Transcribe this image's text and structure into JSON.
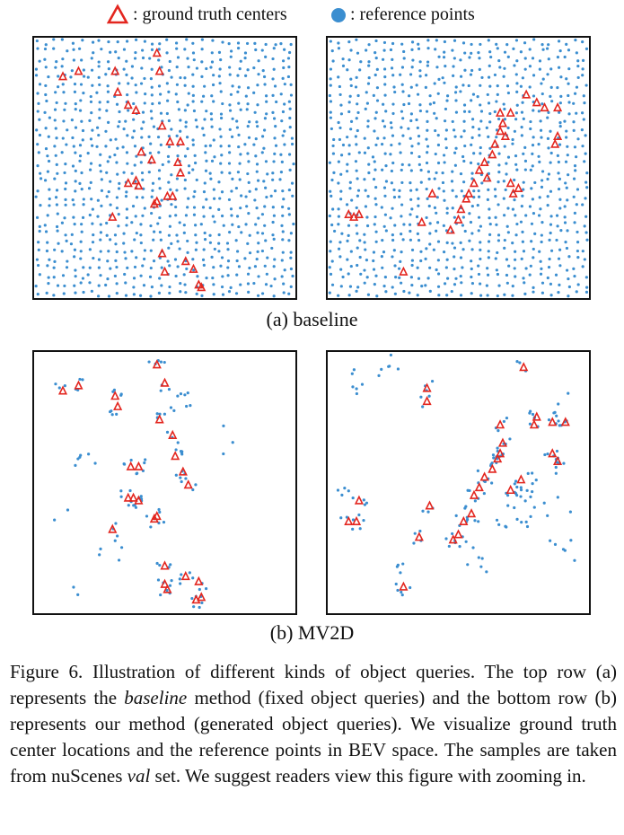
{
  "legend": {
    "ground_truth_label": ": ground truth centers",
    "reference_label": ": reference points",
    "ground_truth_color": "#e3261f",
    "reference_color": "#3b8ed0"
  },
  "subcaptions": {
    "a": "(a) baseline",
    "b": "(b) MV2D"
  },
  "caption": {
    "label": "Figure 6.",
    "text_1": "Illustration of different kinds of object queries. The top row (a) represents the",
    "italic_1": "baseline",
    "text_2": "method (fixed object queries) and the bottom row (b) represents our method (generated object queries). We visualize ground truth center locations and the reference points in BEV space. The samples are taken from nuScenes",
    "italic_2": "val",
    "text_3": "set. We suggest readers view this figure with zooming in."
  },
  "panels": {
    "baseline_left": {
      "ground_truth": [
        [
          0.11,
          0.15
        ],
        [
          0.17,
          0.13
        ],
        [
          0.31,
          0.13
        ],
        [
          0.32,
          0.21
        ],
        [
          0.47,
          0.06
        ],
        [
          0.48,
          0.13
        ],
        [
          0.36,
          0.26
        ],
        [
          0.39,
          0.28
        ],
        [
          0.49,
          0.34
        ],
        [
          0.52,
          0.4
        ],
        [
          0.56,
          0.4
        ],
        [
          0.41,
          0.44
        ],
        [
          0.45,
          0.47
        ],
        [
          0.55,
          0.48
        ],
        [
          0.56,
          0.52
        ],
        [
          0.39,
          0.55
        ],
        [
          0.36,
          0.56
        ],
        [
          0.4,
          0.57
        ],
        [
          0.51,
          0.61
        ],
        [
          0.53,
          0.61
        ],
        [
          0.47,
          0.63
        ],
        [
          0.46,
          0.64
        ],
        [
          0.3,
          0.69
        ],
        [
          0.49,
          0.83
        ],
        [
          0.58,
          0.86
        ],
        [
          0.5,
          0.9
        ],
        [
          0.61,
          0.89
        ],
        [
          0.63,
          0.95
        ],
        [
          0.64,
          0.96
        ]
      ]
    },
    "baseline_right": {
      "ground_truth": [
        [
          0.76,
          0.22
        ],
        [
          0.8,
          0.25
        ],
        [
          0.83,
          0.27
        ],
        [
          0.88,
          0.27
        ],
        [
          0.66,
          0.29
        ],
        [
          0.7,
          0.29
        ],
        [
          0.67,
          0.33
        ],
        [
          0.66,
          0.36
        ],
        [
          0.68,
          0.38
        ],
        [
          0.88,
          0.38
        ],
        [
          0.87,
          0.41
        ],
        [
          0.64,
          0.41
        ],
        [
          0.63,
          0.45
        ],
        [
          0.6,
          0.48
        ],
        [
          0.58,
          0.51
        ],
        [
          0.61,
          0.54
        ],
        [
          0.56,
          0.56
        ],
        [
          0.7,
          0.56
        ],
        [
          0.4,
          0.6
        ],
        [
          0.54,
          0.6
        ],
        [
          0.53,
          0.62
        ],
        [
          0.73,
          0.58
        ],
        [
          0.71,
          0.6
        ],
        [
          0.51,
          0.66
        ],
        [
          0.12,
          0.68
        ],
        [
          0.08,
          0.68
        ],
        [
          0.1,
          0.69
        ],
        [
          0.5,
          0.7
        ],
        [
          0.47,
          0.74
        ],
        [
          0.36,
          0.71
        ],
        [
          0.29,
          0.9
        ]
      ]
    },
    "mv2d_left": {
      "ground_truth": [
        [
          0.11,
          0.15
        ],
        [
          0.17,
          0.13
        ],
        [
          0.31,
          0.17
        ],
        [
          0.32,
          0.21
        ],
        [
          0.47,
          0.05
        ],
        [
          0.5,
          0.12
        ],
        [
          0.48,
          0.26
        ],
        [
          0.53,
          0.32
        ],
        [
          0.54,
          0.4
        ],
        [
          0.57,
          0.46
        ],
        [
          0.37,
          0.44
        ],
        [
          0.4,
          0.44
        ],
        [
          0.38,
          0.56
        ],
        [
          0.4,
          0.57
        ],
        [
          0.59,
          0.51
        ],
        [
          0.36,
          0.56
        ],
        [
          0.47,
          0.63
        ],
        [
          0.46,
          0.64
        ],
        [
          0.3,
          0.68
        ],
        [
          0.5,
          0.82
        ],
        [
          0.58,
          0.86
        ],
        [
          0.5,
          0.89
        ],
        [
          0.51,
          0.91
        ],
        [
          0.63,
          0.88
        ],
        [
          0.62,
          0.95
        ],
        [
          0.64,
          0.94
        ]
      ]
    },
    "mv2d_right": {
      "ground_truth": [
        [
          0.75,
          0.06
        ],
        [
          0.38,
          0.14
        ],
        [
          0.38,
          0.19
        ],
        [
          0.66,
          0.28
        ],
        [
          0.79,
          0.28
        ],
        [
          0.8,
          0.25
        ],
        [
          0.86,
          0.27
        ],
        [
          0.91,
          0.27
        ],
        [
          0.67,
          0.35
        ],
        [
          0.66,
          0.39
        ],
        [
          0.65,
          0.41
        ],
        [
          0.63,
          0.45
        ],
        [
          0.6,
          0.48
        ],
        [
          0.58,
          0.52
        ],
        [
          0.56,
          0.55
        ],
        [
          0.86,
          0.39
        ],
        [
          0.88,
          0.42
        ],
        [
          0.7,
          0.53
        ],
        [
          0.74,
          0.49
        ],
        [
          0.55,
          0.62
        ],
        [
          0.52,
          0.65
        ],
        [
          0.5,
          0.7
        ],
        [
          0.48,
          0.72
        ],
        [
          0.12,
          0.57
        ],
        [
          0.08,
          0.65
        ],
        [
          0.11,
          0.65
        ],
        [
          0.39,
          0.59
        ],
        [
          0.35,
          0.71
        ],
        [
          0.29,
          0.9
        ]
      ]
    }
  }
}
